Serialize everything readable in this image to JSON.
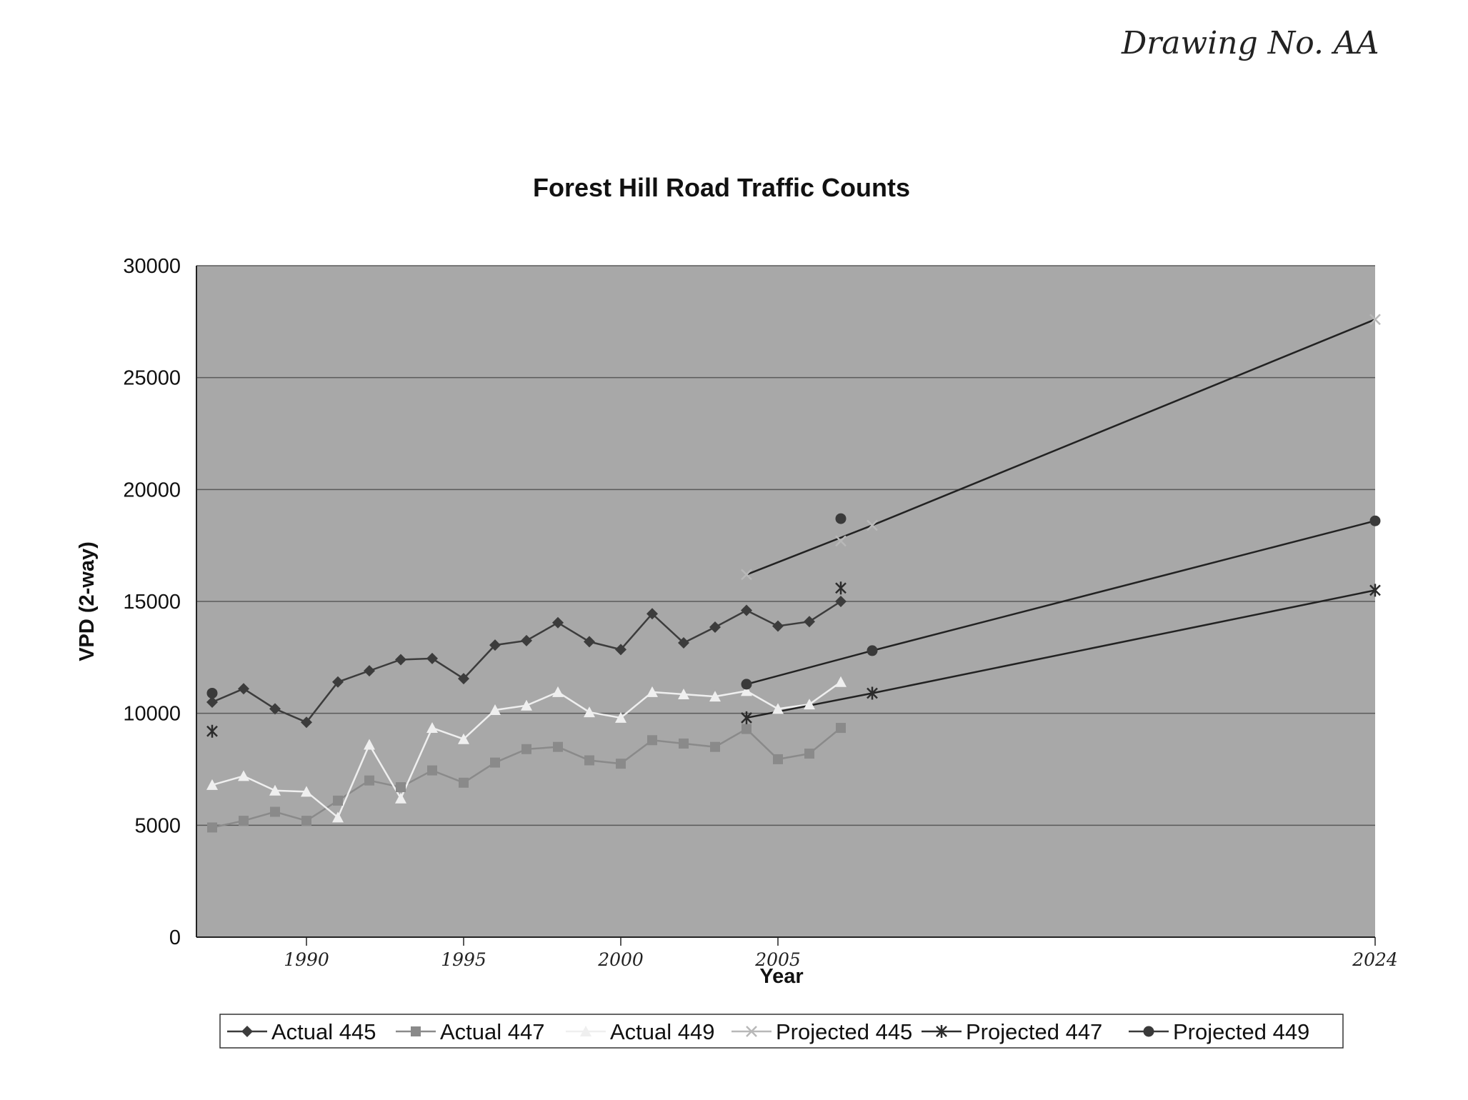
{
  "annotation": "Drawing No. AA",
  "chart_data": {
    "type": "line",
    "title": "Forest Hill Road Traffic Counts",
    "xlabel": "Year",
    "ylabel": "VPD (2-way)",
    "xlim": [
      1986.5,
      2024
    ],
    "ylim": [
      0,
      30000
    ],
    "yticks": [
      0,
      5000,
      10000,
      15000,
      20000,
      25000,
      30000
    ],
    "xtick_labels": [
      {
        "x": 1990,
        "label": "1990"
      },
      {
        "x": 1995,
        "label": "1995"
      },
      {
        "x": 2000,
        "label": "2000"
      },
      {
        "x": 2005,
        "label": "2005"
      },
      {
        "x": 2024,
        "label": "2024"
      }
    ],
    "grid": true,
    "legend_position": "bottom",
    "series": [
      {
        "name": "Actual 445",
        "marker": "diamond",
        "color": "#3c3c3c",
        "x": [
          1987,
          1988,
          1989,
          1990,
          1991,
          1992,
          1993,
          1994,
          1995,
          1996,
          1997,
          1998,
          1999,
          2000,
          2001,
          2002,
          2003,
          2004,
          2005,
          2006,
          2007
        ],
        "y": [
          10500,
          11100,
          10200,
          9600,
          11400,
          11900,
          12400,
          12450,
          11550,
          13050,
          13250,
          14050,
          13200,
          12850,
          14450,
          13150,
          13850,
          14600,
          13900,
          14100,
          15000
        ]
      },
      {
        "name": "Actual 447",
        "marker": "square",
        "color": "#8a8a8a",
        "x": [
          1987,
          1988,
          1989,
          1990,
          1991,
          1992,
          1993,
          1994,
          1995,
          1996,
          1997,
          1998,
          1999,
          2000,
          2001,
          2002,
          2003,
          2004,
          2005,
          2006,
          2007
        ],
        "y": [
          4900,
          5200,
          5600,
          5200,
          6100,
          7000,
          6700,
          7450,
          6900,
          7800,
          8400,
          8500,
          7900,
          7750,
          8800,
          8650,
          8500,
          9300,
          7950,
          8200,
          9350
        ]
      },
      {
        "name": "Actual 449",
        "marker": "triangle",
        "color": "#efefef",
        "x": [
          1987,
          1988,
          1989,
          1990,
          1991,
          1992,
          1993,
          1994,
          1995,
          1996,
          1997,
          1998,
          1999,
          2000,
          2001,
          2002,
          2003,
          2004,
          2005,
          2006,
          2007
        ],
        "y": [
          6800,
          7200,
          6550,
          6500,
          5350,
          8600,
          6200,
          9350,
          8850,
          10150,
          10350,
          10950,
          10050,
          9800,
          10950,
          10850,
          10750,
          11000,
          10200,
          10400,
          11400
        ]
      },
      {
        "name": "Projected 445",
        "marker": "x",
        "color": "#b8b8b8",
        "x": [
          2004,
          2007,
          2008,
          2024
        ],
        "y": [
          16200,
          17700,
          18400,
          27600
        ]
      },
      {
        "name": "Projected 447",
        "marker": "asterisk",
        "color": "#2c2c2c",
        "x": [
          1987,
          2007,
          2004,
          2008,
          2024
        ],
        "y": [
          9200,
          15600,
          9800,
          10900,
          15500
        ]
      },
      {
        "name": "Projected 449",
        "marker": "circle",
        "color": "#3a3a3a",
        "x": [
          1987,
          2007,
          2004,
          2008,
          2024
        ],
        "y": [
          10900,
          18700,
          11300,
          12800,
          18600
        ]
      }
    ],
    "projection_lines": [
      {
        "name": "Projected 445 trend",
        "x": [
          2004,
          2008,
          2024
        ],
        "y": [
          16200,
          18400,
          27600
        ]
      },
      {
        "name": "Projected 449 trend",
        "x": [
          2004,
          2008,
          2024
        ],
        "y": [
          11300,
          12800,
          18600
        ]
      },
      {
        "name": "Projected 447 trend",
        "x": [
          2004,
          2008,
          2024
        ],
        "y": [
          9800,
          10900,
          15500
        ]
      }
    ]
  },
  "colors": {
    "plot_background": "#a8a8a8",
    "gridline": "#5a5a5a",
    "projection_line": "#222222"
  }
}
